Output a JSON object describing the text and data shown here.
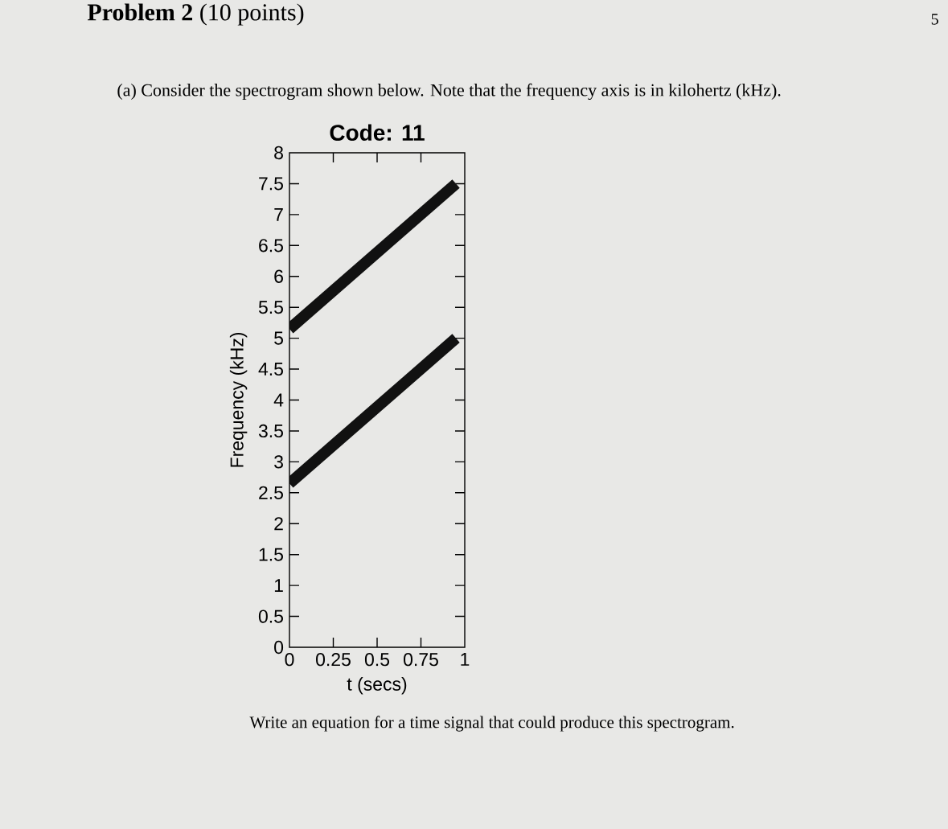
{
  "chart_data": {
    "type": "line",
    "title": "Code: 11",
    "xlabel": "t (secs)",
    "ylabel": "Frequency (kHz)",
    "x": [
      0,
      0.95
    ],
    "series": [
      {
        "color": "#111111",
        "values": [
          5.15,
          7.5
        ]
      },
      {
        "color": "#111111",
        "values": [
          2.65,
          5
        ]
      }
    ],
    "xlim": [
      0,
      1
    ],
    "ylim": [
      0,
      8
    ],
    "xticks": [
      0,
      0.25,
      0.5,
      0.75,
      1
    ],
    "yticks": [
      0,
      0.5,
      1,
      1.5,
      2,
      2.5,
      3,
      3.5,
      4,
      4.5,
      5,
      5.5,
      6,
      6.5,
      7,
      7.5,
      8
    ],
    "annotations": [
      "**Problem 2** (10 points)",
      "5",
      "(a) Consider the spectrogram shown below. Note that the frequency axis is in kilohertz (kHz).",
      "Write an equation for a time signal that could produce this spectrogram."
    ]
  }
}
